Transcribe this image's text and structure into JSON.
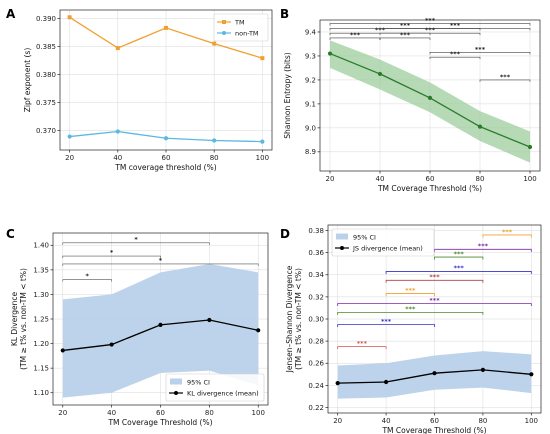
{
  "chart_data": [
    {
      "panel": "A",
      "type": "line",
      "xlabel": "TM coverage threshold (%)",
      "ylabel": "Zipf exponent (s)",
      "x": [
        20,
        40,
        60,
        80,
        100
      ],
      "xticks": [
        "20",
        "40",
        "60",
        "80",
        "100"
      ],
      "ylim": [
        0.3665,
        0.3915
      ],
      "yticks": [
        0.37,
        0.375,
        0.38,
        0.385,
        0.39
      ],
      "ytick_labels": [
        "0.370",
        "0.375",
        "0.380",
        "0.385",
        "0.390"
      ],
      "grid": true,
      "legend": "top-right",
      "series": [
        {
          "name": "TM",
          "values": [
            0.3902,
            0.3847,
            0.3883,
            0.3855,
            0.3829
          ],
          "color": "#f0a030",
          "marker": "square"
        },
        {
          "name": "non-TM",
          "values": [
            0.3689,
            0.3698,
            0.3686,
            0.3682,
            0.368
          ],
          "color": "#5bb8e0",
          "marker": "circle"
        }
      ]
    },
    {
      "panel": "B",
      "type": "line",
      "xlabel": "TM Coverage Threshold (%)",
      "ylabel": "Shannon Entropy (bits)",
      "x": [
        20,
        40,
        60,
        80,
        100
      ],
      "xticks": [
        "20",
        "40",
        "60",
        "80",
        "100"
      ],
      "ylim": [
        8.82,
        9.45
      ],
      "yticks": [
        8.9,
        9.0,
        9.1,
        9.2,
        9.3,
        9.4
      ],
      "ytick_labels": [
        "8.9",
        "9.0",
        "9.1",
        "9.2",
        "9.3",
        "9.4"
      ],
      "grid": true,
      "series": [
        {
          "values": [
            9.31,
            9.225,
            9.125,
            9.005,
            8.92
          ],
          "ci_low": [
            9.25,
            9.16,
            9.065,
            8.945,
            8.855
          ],
          "ci_high": [
            9.365,
            9.285,
            9.19,
            9.07,
            8.985
          ],
          "color": "#2a7a2a",
          "band_color": "#9dcc9d"
        }
      ],
      "annotations": [
        {
          "from": 20,
          "to": 40,
          "label": "***"
        },
        {
          "from": 20,
          "to": 60,
          "label": "***"
        },
        {
          "from": 20,
          "to": 80,
          "label": "***"
        },
        {
          "from": 20,
          "to": 100,
          "label": "***"
        },
        {
          "from": 40,
          "to": 60,
          "label": "***"
        },
        {
          "from": 40,
          "to": 80,
          "label": "***"
        },
        {
          "from": 40,
          "to": 100,
          "label": "***"
        },
        {
          "from": 60,
          "to": 80,
          "label": "***"
        },
        {
          "from": 60,
          "to": 100,
          "label": "***"
        },
        {
          "from": 80,
          "to": 100,
          "label": "***"
        }
      ]
    },
    {
      "panel": "C",
      "type": "line",
      "xlabel": "TM Coverage Threshold (%)",
      "ylabel": "KL Divergence\n(TM ≥ t% vs. non-TM < t%)",
      "x": [
        20,
        40,
        60,
        80,
        100
      ],
      "xticks": [
        "20",
        "40",
        "60",
        "80",
        "100"
      ],
      "ylim": [
        1.075,
        1.425
      ],
      "yticks": [
        1.1,
        1.15,
        1.2,
        1.25,
        1.3,
        1.35,
        1.4
      ],
      "ytick_labels": [
        "1.10",
        "1.15",
        "1.20",
        "1.25",
        "1.30",
        "1.35",
        "1.40"
      ],
      "grid": true,
      "legend": "lower-right",
      "series": [
        {
          "name": "KL divergence (mean)",
          "values": [
            1.186,
            1.198,
            1.238,
            1.248,
            1.227
          ],
          "color": "#000000",
          "marker": "circle"
        },
        {
          "name": "95% CI",
          "ci_low": [
            1.09,
            1.1,
            1.14,
            1.145,
            1.115
          ],
          "ci_high": [
            1.29,
            1.3,
            1.345,
            1.362,
            1.345
          ],
          "color": "#b9d1ea"
        }
      ],
      "annotations": [
        {
          "from": 20,
          "to": 40,
          "label": "*"
        },
        {
          "from": 20,
          "to": 60,
          "label": "*"
        },
        {
          "from": 20,
          "to": 80,
          "label": "*"
        },
        {
          "from": 20,
          "to": 100,
          "label": "*"
        }
      ]
    },
    {
      "panel": "D",
      "type": "line",
      "xlabel": "TM Coverage Threshold (%)",
      "ylabel": "Jensen–Shannon Divergence\n(TM ≥ t% vs. non-TM < t%)",
      "x": [
        20,
        40,
        60,
        80,
        100
      ],
      "xticks": [
        "20",
        "40",
        "60",
        "80",
        "100"
      ],
      "ylim": [
        0.215,
        0.385
      ],
      "yticks": [
        0.22,
        0.24,
        0.26,
        0.28,
        0.3,
        0.32,
        0.34,
        0.36,
        0.38
      ],
      "ytick_labels": [
        "0.22",
        "0.24",
        "0.26",
        "0.28",
        "0.30",
        "0.32",
        "0.34",
        "0.36",
        "0.38"
      ],
      "grid": true,
      "legend": "upper-left",
      "series": [
        {
          "name": "JS divergence (mean)",
          "values": [
            0.242,
            0.243,
            0.251,
            0.254,
            0.25
          ],
          "color": "#000000",
          "marker": "circle"
        },
        {
          "name": "95% CI",
          "ci_low": [
            0.228,
            0.229,
            0.236,
            0.238,
            0.233
          ],
          "ci_high": [
            0.258,
            0.26,
            0.267,
            0.271,
            0.268
          ],
          "color": "#b9d1ea"
        }
      ],
      "annotations": [
        {
          "from": 20,
          "to": 40,
          "y": 0.275,
          "label": "***",
          "color": "#d9534f"
        },
        {
          "from": 20,
          "to": 60,
          "y": 0.295,
          "label": "***",
          "color": "#3333cc"
        },
        {
          "from": 20,
          "to": 80,
          "y": 0.306,
          "label": "***",
          "color": "#4a8a2a"
        },
        {
          "from": 20,
          "to": 100,
          "y": 0.314,
          "label": "***",
          "color": "#7a2aa8"
        },
        {
          "from": 40,
          "to": 60,
          "y": 0.323,
          "label": "***",
          "color": "#f0a030"
        },
        {
          "from": 40,
          "to": 80,
          "y": 0.335,
          "label": "***",
          "color": "#b04040"
        },
        {
          "from": 40,
          "to": 100,
          "y": 0.343,
          "label": "***",
          "color": "#3333cc"
        },
        {
          "from": 60,
          "to": 80,
          "y": 0.356,
          "label": "***",
          "color": "#4a8a2a"
        },
        {
          "from": 60,
          "to": 100,
          "y": 0.363,
          "label": "***",
          "color": "#7a2aa8"
        },
        {
          "from": 80,
          "to": 100,
          "y": 0.376,
          "label": "***",
          "color": "#f0a030"
        }
      ]
    }
  ]
}
